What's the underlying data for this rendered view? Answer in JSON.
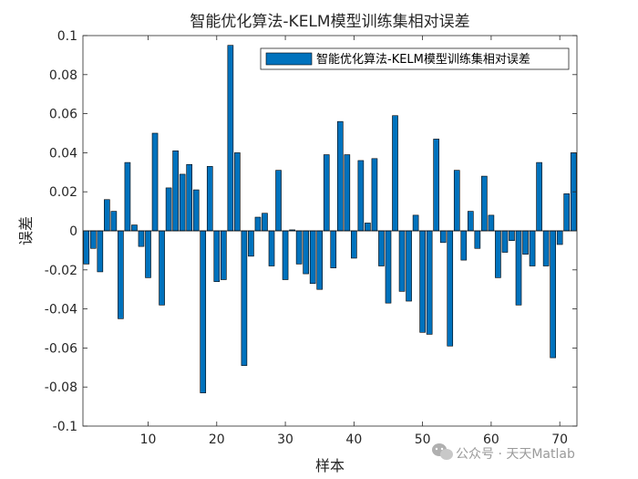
{
  "chart_data": {
    "type": "bar",
    "title": "智能优化算法-KELM模型训练集相对误差",
    "xlabel": "样本",
    "ylabel": "误差",
    "xlim": [
      0.5,
      72.5
    ],
    "ylim": [
      -0.1,
      0.1
    ],
    "xticks": [
      10,
      20,
      30,
      40,
      50,
      60,
      70
    ],
    "yticks": [
      -0.1,
      -0.08,
      -0.06,
      -0.04,
      -0.02,
      0,
      0.02,
      0.04,
      0.06,
      0.08,
      0.1
    ],
    "grid": false,
    "legend_position": "top-right",
    "series": [
      {
        "name": "智能优化算法-KELM模型训练集相对误差",
        "color": "#0072BD",
        "x": [
          1,
          2,
          3,
          4,
          5,
          6,
          7,
          8,
          9,
          10,
          11,
          12,
          13,
          14,
          15,
          16,
          17,
          18,
          19,
          20,
          21,
          22,
          23,
          24,
          25,
          26,
          27,
          28,
          29,
          30,
          31,
          32,
          33,
          34,
          35,
          36,
          37,
          38,
          39,
          40,
          41,
          42,
          43,
          44,
          45,
          46,
          47,
          48,
          49,
          50,
          51,
          52,
          53,
          54,
          55,
          56,
          57,
          58,
          59,
          60,
          61,
          62,
          63,
          64,
          65,
          66,
          67,
          68,
          69,
          70,
          71,
          72
        ],
        "values": [
          -0.017,
          -0.009,
          -0.021,
          0.016,
          0.01,
          -0.045,
          0.035,
          0.003,
          -0.008,
          -0.024,
          0.05,
          -0.038,
          0.022,
          0.041,
          0.029,
          0.034,
          0.021,
          -0.083,
          0.033,
          -0.026,
          -0.025,
          0.095,
          0.04,
          -0.069,
          -0.013,
          0.007,
          0.009,
          -0.018,
          0.031,
          -0.025,
          0.0005,
          -0.017,
          -0.022,
          -0.027,
          -0.03,
          0.039,
          -0.019,
          0.056,
          0.039,
          -0.014,
          0.036,
          0.004,
          0.037,
          -0.018,
          -0.037,
          0.059,
          -0.031,
          -0.036,
          0.008,
          -0.052,
          -0.053,
          0.047,
          -0.006,
          -0.059,
          0.031,
          -0.015,
          0.01,
          -0.009,
          0.028,
          0.008,
          -0.024,
          -0.011,
          -0.005,
          -0.038,
          -0.012,
          -0.018,
          0.035,
          -0.018,
          -0.065,
          -0.007,
          0.019,
          0.04
        ]
      }
    ]
  },
  "watermark": {
    "text": "公众号 · 天天Matlab",
    "icon": "wechat-icon"
  }
}
